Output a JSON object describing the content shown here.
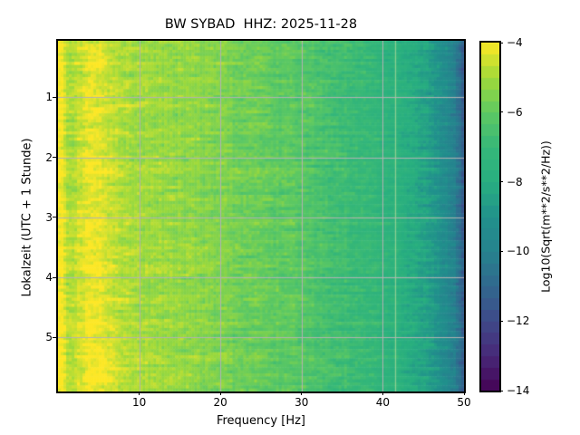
{
  "title": "BW SYBAD  HHZ: 2025-11-28",
  "axes": {
    "x": {
      "label": "Frequency [Hz]",
      "range": [
        0,
        50
      ],
      "ticks": [
        {
          "v": 10,
          "label": "10"
        },
        {
          "v": 20,
          "label": "20"
        },
        {
          "v": 30,
          "label": "30"
        },
        {
          "v": 40,
          "label": "40"
        },
        {
          "v": 50,
          "label": "50"
        }
      ]
    },
    "y": {
      "label": "Lokalzeit (UTC + 1 Stunde)",
      "range": [
        0.06,
        5.9
      ],
      "ticks": [
        {
          "v": 1,
          "label": "1"
        },
        {
          "v": 2,
          "label": "2"
        },
        {
          "v": 3,
          "label": "3"
        },
        {
          "v": 4,
          "label": "4"
        },
        {
          "v": 5,
          "label": "5"
        }
      ]
    }
  },
  "colorbar": {
    "label": "Log10(Sqrt(m**2/s**2/Hz))",
    "range": [
      -14,
      -4
    ],
    "levels": 30,
    "ticks": [
      {
        "v": -4,
        "label": "−4"
      },
      {
        "v": -6,
        "label": "−6"
      },
      {
        "v": -8,
        "label": "−8"
      },
      {
        "v": -10,
        "label": "−10"
      },
      {
        "v": -12,
        "label": "−12"
      },
      {
        "v": -14,
        "label": "−14"
      }
    ]
  },
  "chart_data": {
    "type": "heatmap",
    "title": "BW SYBAD  HHZ: 2025-11-28",
    "xlabel": "Frequency [Hz]",
    "ylabel": "Lokalzeit (UTC + 1 Stunde)",
    "units": "Log10(Sqrt(m**2/s**2/Hz))",
    "x_range": [
      0,
      50
    ],
    "y_range": [
      0.06,
      5.9
    ],
    "clim": [
      -14,
      -4
    ],
    "grid_on": true,
    "grid_color": "#b2b2b2",
    "colormap": {
      "name": "viridis",
      "stops": [
        [
          0.0,
          "#440154"
        ],
        [
          0.1,
          "#482878"
        ],
        [
          0.2,
          "#3e4989"
        ],
        [
          0.3,
          "#31688e"
        ],
        [
          0.4,
          "#26828e"
        ],
        [
          0.5,
          "#21918c"
        ],
        [
          0.6,
          "#28ae80"
        ],
        [
          0.7,
          "#35b779"
        ],
        [
          0.8,
          "#5ec962"
        ],
        [
          0.9,
          "#a0da39"
        ],
        [
          1.0,
          "#fde725"
        ]
      ]
    },
    "summary": "Seismic spectrogram, 0-50 Hz vs ~6 h local time. Power near -4.3 at lowest frequencies, a bright 3-6 Hz band, ~-5.3 through midband, falling to ~-11 at the 50 Hz edge; brighter horizontal bursts at several times and a thin persistent narrowband line near 41.5 Hz.",
    "model": {
      "seed": 42,
      "freq_profile": [
        [
          0.0,
          -4.25
        ],
        [
          0.5,
          -4.3
        ],
        [
          1.0,
          -4.9
        ],
        [
          1.5,
          -5.1
        ],
        [
          2.0,
          -5.05
        ],
        [
          2.5,
          -4.9
        ],
        [
          3.0,
          -4.7
        ],
        [
          4.0,
          -4.55
        ],
        [
          5.0,
          -4.6
        ],
        [
          6.0,
          -4.75
        ],
        [
          7.0,
          -4.95
        ],
        [
          8.0,
          -5.05
        ],
        [
          10.0,
          -5.15
        ],
        [
          12.0,
          -5.2
        ],
        [
          15.0,
          -5.3
        ],
        [
          18.0,
          -5.45
        ],
        [
          20.0,
          -5.55
        ],
        [
          22.0,
          -5.7
        ],
        [
          25.0,
          -5.9
        ],
        [
          28.0,
          -6.1
        ],
        [
          30.0,
          -6.25
        ],
        [
          32.0,
          -6.45
        ],
        [
          34.0,
          -6.65
        ],
        [
          36.0,
          -6.85
        ],
        [
          38.0,
          -7.05
        ],
        [
          40.0,
          -7.35
        ],
        [
          41.0,
          -7.5
        ],
        [
          42.0,
          -7.7
        ],
        [
          43.0,
          -7.95
        ],
        [
          44.0,
          -8.2
        ],
        [
          45.0,
          -8.45
        ],
        [
          46.0,
          -8.75
        ],
        [
          47.0,
          -9.05
        ],
        [
          48.0,
          -9.5
        ],
        [
          49.0,
          -10.2
        ],
        [
          49.7,
          -11.0
        ],
        [
          50.0,
          -11.4
        ]
      ],
      "time_bands": [
        {
          "t": 0.2,
          "a": 0.3,
          "w": 0.06
        },
        {
          "t": 0.45,
          "a": 0.3,
          "w": 0.08
        },
        {
          "t": 0.8,
          "a": 0.2,
          "w": 0.07
        },
        {
          "t": 1.2,
          "a": 0.25,
          "w": 0.1
        },
        {
          "t": 1.55,
          "a": 0.2,
          "w": 0.07
        },
        {
          "t": 2.2,
          "a": 0.3,
          "w": 0.15
        },
        {
          "t": 2.75,
          "a": 0.25,
          "w": 0.1
        },
        {
          "t": 3.1,
          "a": 0.25,
          "w": 0.08
        },
        {
          "t": 3.55,
          "a": 0.2,
          "w": 0.08
        },
        {
          "t": 3.85,
          "a": 0.5,
          "w": 0.06
        },
        {
          "t": 4.35,
          "a": 0.2,
          "w": 0.08
        },
        {
          "t": 4.8,
          "a": 0.25,
          "w": 0.1
        },
        {
          "t": 5.3,
          "a": 0.3,
          "w": 0.15
        },
        {
          "t": 5.7,
          "a": 0.3,
          "w": 0.12
        }
      ],
      "trend_low": 0.22,
      "band_3_6": {
        "center": 4.5,
        "sigma": 1.6,
        "amp": 0.3
      },
      "narrowband_line_hz": 41.5,
      "noise": {
        "row": 0.12,
        "run": 0.5,
        "cell": 0.18
      }
    }
  }
}
